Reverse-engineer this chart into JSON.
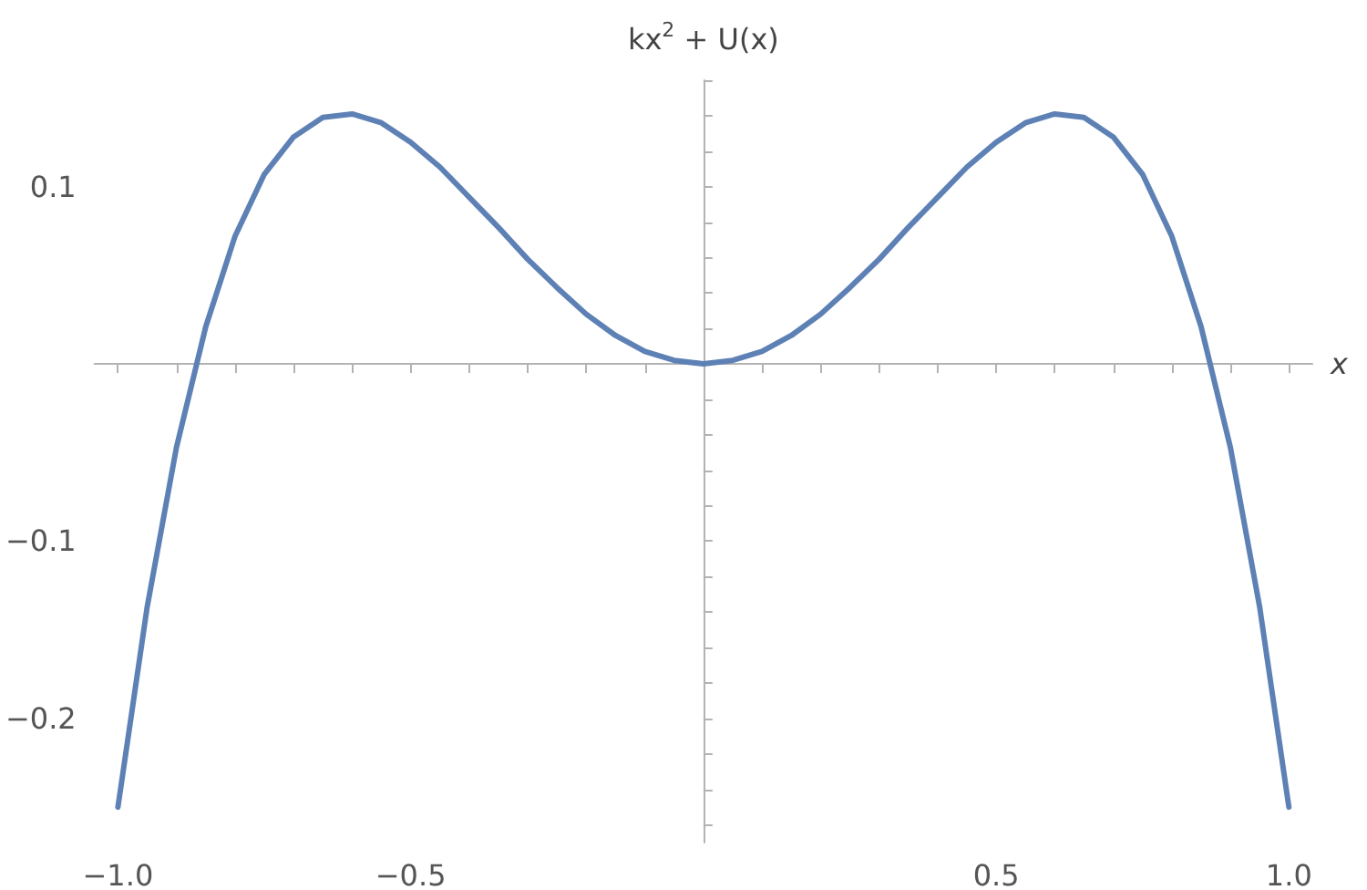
{
  "chart_data": {
    "type": "line",
    "xlabel": "x",
    "ylabel": "kx$^{2}$ + U(x)",
    "marker": "none",
    "line_style": "solid",
    "xlim": [
      -1.04,
      1.04
    ],
    "ylim": [
      -0.27,
      0.16
    ],
    "xticks": [
      {
        "value": -1.0,
        "label": "−1.0"
      },
      {
        "value": -0.9,
        "label": null
      },
      {
        "value": -0.8,
        "label": null
      },
      {
        "value": -0.7,
        "label": null
      },
      {
        "value": -0.6,
        "label": null
      },
      {
        "value": -0.5,
        "label": "−0.5"
      },
      {
        "value": -0.4,
        "label": null
      },
      {
        "value": -0.3,
        "label": null
      },
      {
        "value": -0.2,
        "label": null
      },
      {
        "value": -0.1,
        "label": null
      },
      {
        "value": 0.1,
        "label": null
      },
      {
        "value": 0.2,
        "label": null
      },
      {
        "value": 0.3,
        "label": null
      },
      {
        "value": 0.4,
        "label": null
      },
      {
        "value": 0.5,
        "label": "0.5"
      },
      {
        "value": 0.6,
        "label": null
      },
      {
        "value": 0.7,
        "label": null
      },
      {
        "value": 0.8,
        "label": null
      },
      {
        "value": 0.9,
        "label": null
      },
      {
        "value": 1.0,
        "label": "1.0"
      }
    ],
    "yticks": [
      {
        "value": -0.26,
        "label": null
      },
      {
        "value": -0.24,
        "label": null
      },
      {
        "value": -0.22,
        "label": null
      },
      {
        "value": -0.2,
        "label": "−0.2"
      },
      {
        "value": -0.18,
        "label": null
      },
      {
        "value": -0.16,
        "label": null
      },
      {
        "value": -0.14,
        "label": null
      },
      {
        "value": -0.12,
        "label": null
      },
      {
        "value": -0.1,
        "label": "−0.1"
      },
      {
        "value": -0.08,
        "label": null
      },
      {
        "value": -0.06,
        "label": null
      },
      {
        "value": -0.04,
        "label": null
      },
      {
        "value": -0.02,
        "label": null
      },
      {
        "value": 0.02,
        "label": null
      },
      {
        "value": 0.04,
        "label": null
      },
      {
        "value": 0.06,
        "label": null
      },
      {
        "value": 0.08,
        "label": null
      },
      {
        "value": 0.1,
        "label": "0.1"
      },
      {
        "value": 0.12,
        "label": null
      },
      {
        "value": 0.14,
        "label": null
      },
      {
        "value": 0.16,
        "label": null
      }
    ],
    "series": [
      {
        "color": "#5e81b5",
        "x": [
          -1.0,
          -0.95,
          -0.9,
          -0.85,
          -0.8,
          -0.75,
          -0.7,
          -0.65,
          -0.6,
          -0.55,
          -0.5,
          -0.45,
          -0.4,
          -0.35,
          -0.3,
          -0.25,
          -0.2,
          -0.15,
          -0.1,
          -0.05,
          0,
          0.05,
          0.1,
          0.15,
          0.2,
          0.25,
          0.3,
          0.35,
          0.4,
          0.45,
          0.5,
          0.55,
          0.6,
          0.65,
          0.7,
          0.75,
          0.8,
          0.85,
          0.9,
          0.95,
          1.0
        ],
        "values": [
          -0.25,
          -0.137,
          -0.047,
          0.021,
          0.072,
          0.107,
          0.128,
          0.139,
          0.141,
          0.136,
          0.125,
          0.111,
          0.094,
          0.077,
          0.059,
          0.043,
          0.028,
          0.016,
          0.007,
          0.002,
          0,
          0.002,
          0.007,
          0.016,
          0.028,
          0.043,
          0.059,
          0.077,
          0.094,
          0.111,
          0.125,
          0.136,
          0.141,
          0.139,
          0.128,
          0.107,
          0.072,
          0.021,
          -0.047,
          -0.137,
          -0.25
        ]
      }
    ]
  }
}
